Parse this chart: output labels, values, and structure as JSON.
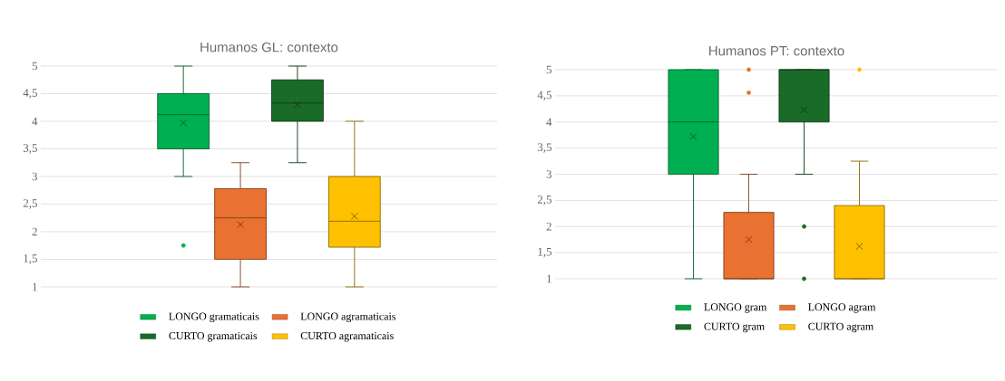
{
  "chart_data": [
    {
      "type": "box",
      "title": "Humanos GL: contexto",
      "categories": [
        null
      ],
      "ylim": [
        1,
        5
      ],
      "yticks": [
        1,
        {
          "value": 1.5,
          "label": "1,5"
        },
        2,
        {
          "value": 2.5,
          "label": "2,5"
        },
        3,
        {
          "value": 3.5,
          "label": "3,5"
        },
        4,
        {
          "value": 4.5,
          "label": "4,5"
        },
        5
      ],
      "grid": "y",
      "legend": "bottom",
      "series": [
        {
          "name": "LONGO gramaticais",
          "color": "#00b050",
          "boxes": [
            {
              "low": 3,
              "q1": 3.5,
              "median": 4.12,
              "q3": 4.5,
              "high": 5,
              "mean": 3.97,
              "outliers": [
                1.75
              ]
            }
          ]
        },
        {
          "name": "LONGO agramaticais",
          "color": "#e97132",
          "boxes": [
            {
              "low": 1,
              "q1": 1.5,
              "median": 2.25,
              "q3": 2.78,
              "high": 3.25,
              "mean": 2.13
            }
          ]
        },
        {
          "name": "CURTO gramaticais",
          "color": "#1a6b27",
          "boxes": [
            {
              "low": 3.25,
              "q1": 4,
              "median": 4.33,
              "q3": 4.75,
              "high": 5,
              "mean": 4.3
            }
          ]
        },
        {
          "name": "CURTO agramaticais",
          "color": "#ffc000",
          "boxes": [
            {
              "low": 1,
              "q1": 1.72,
              "median": 2.19,
              "q3": 3,
              "high": 4,
              "mean": 2.28
            }
          ]
        }
      ]
    },
    {
      "type": "box",
      "title": "Humanos PT: contexto",
      "categories": [
        null
      ],
      "ylim": [
        1,
        5
      ],
      "yticks": [
        1,
        {
          "value": 1.5,
          "label": "1,5"
        },
        2,
        {
          "value": 2.5,
          "label": "2,5"
        },
        3,
        {
          "value": 3.5,
          "label": "3,5"
        },
        4,
        {
          "value": 4.5,
          "label": "4,5"
        },
        5
      ],
      "grid": "y",
      "legend": "bottom",
      "series": [
        {
          "name": "LONGO gram",
          "color": "#00b050",
          "boxes": [
            {
              "low": 1,
              "q1": 3,
              "median": 4,
              "q3": 5,
              "high": 5,
              "mean": 3.72
            }
          ]
        },
        {
          "name": "LONGO agram",
          "color": "#e97132",
          "boxes": [
            {
              "low": 1,
              "q1": 1,
              "median": 1,
              "q3": 2.27,
              "high": 3,
              "mean": 1.75,
              "outliers": [
                4.56,
                5
              ]
            }
          ]
        },
        {
          "name": "CURTO gram",
          "color": "#1a6b27",
          "boxes": [
            {
              "low": 3,
              "q1": 4,
              "median": 5,
              "q3": 5,
              "high": 5,
              "mean": 4.23,
              "outliers": [
                2,
                1
              ]
            }
          ]
        },
        {
          "name": "CURTO agram",
          "color": "#ffc000",
          "boxes": [
            {
              "low": 1,
              "q1": 1,
              "median": 1,
              "q3": 2.4,
              "high": 3.25,
              "mean": 1.62,
              "outliers": [
                5
              ]
            }
          ]
        }
      ]
    }
  ]
}
